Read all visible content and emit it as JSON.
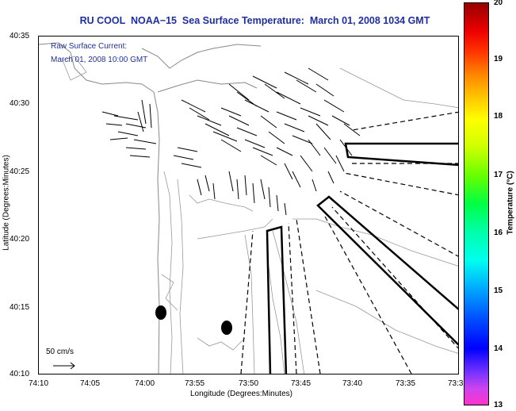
{
  "title": "RU COOL  NOAA−15  Sea Surface Temperature:  March 01, 2008 1034 GMT",
  "overlay": {
    "line1": "Raw Surface Current:",
    "line2": "March 01, 2008 10:00 GMT"
  },
  "axes": {
    "x_title": "Longitude (Degrees:Minutes)",
    "y_title": "Latitude (Degrees:Minutes)",
    "y_ticks": [
      "40:35",
      "40:30",
      "40:25",
      "40:20",
      "40:15",
      "40:10"
    ],
    "x_ticks": [
      "74:10",
      "74:05",
      "74:00",
      "73:55",
      "73:50",
      "73:45",
      "73:40",
      "73:35",
      "73:3"
    ]
  },
  "scale_label": "50 cm/s",
  "colorbar": {
    "title": "Temperature (°C)",
    "ticks": [
      "20",
      "19",
      "18",
      "17",
      "16",
      "15",
      "14",
      "13"
    ]
  },
  "colors": {
    "title": "#1f2fa0",
    "land_lines": "#888888",
    "vectors": "#000000"
  }
}
